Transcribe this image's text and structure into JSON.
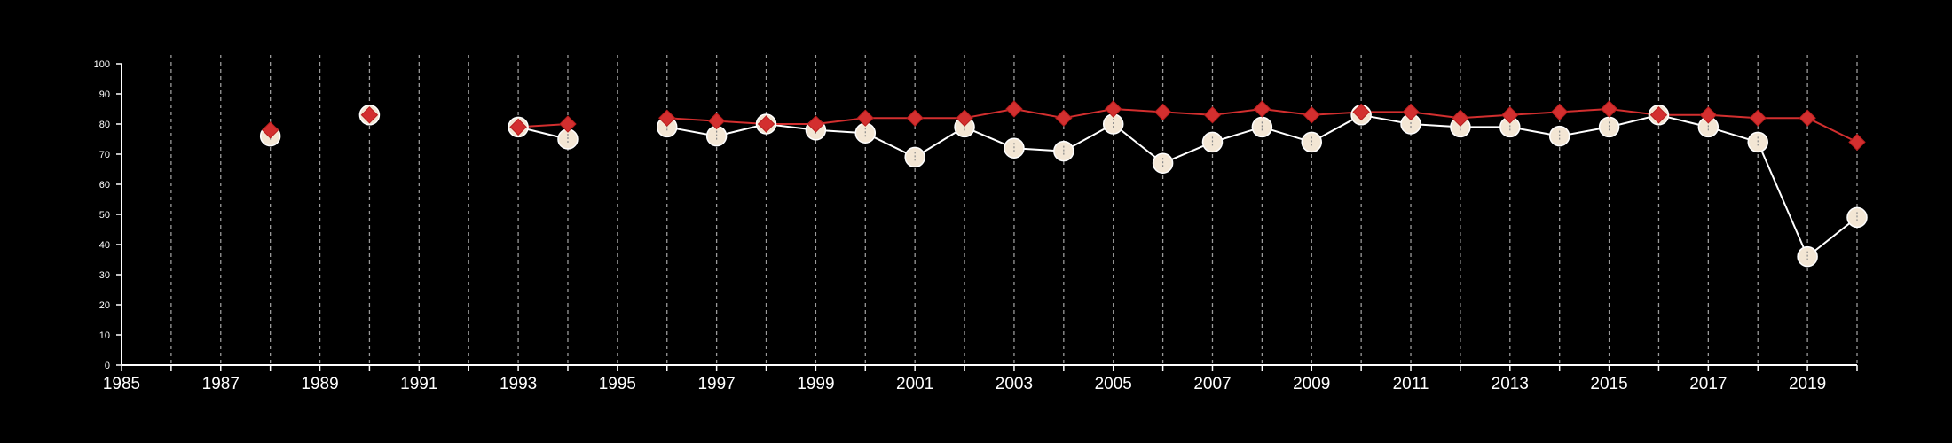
{
  "chart_data": {
    "type": "line",
    "title": "",
    "xlabel": "",
    "ylabel": "",
    "xlim": [
      1985,
      2020
    ],
    "ylim": [
      0,
      100
    ],
    "x_ticks": [
      1985,
      1987,
      1989,
      1991,
      1993,
      1995,
      1997,
      1999,
      2001,
      2003,
      2005,
      2007,
      2009,
      2011,
      2013,
      2015,
      2017,
      2019
    ],
    "x_tick_labels": [
      "1985",
      "1987",
      "1989",
      "1991",
      "1993",
      "1995",
      "1997",
      "1999",
      "2001",
      "2003",
      "2005",
      "2007",
      "2009",
      "2011",
      "2013",
      "2015",
      "2017",
      "2019"
    ],
    "y_ticks": [
      0,
      10,
      20,
      30,
      40,
      50,
      60,
      70,
      80,
      90,
      100
    ],
    "y_tick_labels": [
      "0",
      "10",
      "20",
      "30",
      "40",
      "50",
      "60",
      "70",
      "80",
      "90",
      "100"
    ],
    "grid": "vertical dashed lines at every year",
    "x": [
      1988,
      1990,
      1993,
      1994,
      1996,
      1997,
      1998,
      1999,
      2000,
      2001,
      2002,
      2003,
      2004,
      2005,
      2006,
      2007,
      2008,
      2009,
      2010,
      2011,
      2012,
      2013,
      2014,
      2015,
      2016,
      2017,
      2018,
      2019,
      2020
    ],
    "series": [
      {
        "marker": "circle",
        "color": "#f3e6d4",
        "values": [
          76,
          83,
          79,
          75,
          79,
          76,
          80,
          78,
          77,
          69,
          79,
          72,
          71,
          80,
          67,
          74,
          79,
          74,
          83,
          80,
          79,
          79,
          76,
          79,
          83,
          79,
          74,
          36,
          49
        ]
      },
      {
        "marker": "diamond",
        "color": "#d32f2f",
        "values": [
          78,
          83,
          79,
          80,
          82,
          81,
          80,
          80,
          82,
          82,
          82,
          85,
          82,
          85,
          84,
          83,
          85,
          83,
          84,
          84,
          82,
          83,
          84,
          85,
          83,
          83,
          82,
          82,
          74
        ]
      }
    ]
  }
}
